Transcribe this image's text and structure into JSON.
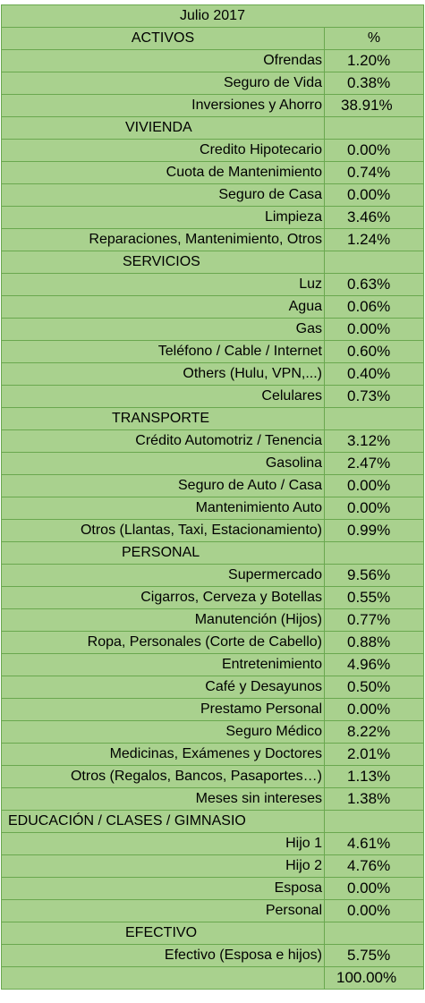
{
  "title": "Julio 2017",
  "header": {
    "label": "ACTIVOS",
    "value": "%"
  },
  "colors": {
    "cell_fill": "#a9d18e",
    "grid": "#6aa84f"
  },
  "rows": [
    {
      "type": "item",
      "label": "Ofrendas",
      "value": "1.20%"
    },
    {
      "type": "item",
      "label": "Seguro de Vida",
      "value": "0.38%"
    },
    {
      "type": "item",
      "label": "Inversiones y Ahorro",
      "value": "38.91%"
    },
    {
      "type": "section",
      "label": "VIVIENDA",
      "indent": 138
    },
    {
      "type": "item",
      "label": "Credito Hipotecario",
      "value": "0.00%"
    },
    {
      "type": "item",
      "label": "Cuota de Mantenimiento",
      "value": "0.74%"
    },
    {
      "type": "item",
      "label": "Seguro de Casa",
      "value": "0.00%"
    },
    {
      "type": "item",
      "label": "Limpieza",
      "value": "3.46%"
    },
    {
      "type": "item",
      "label": "Reparaciones, Mantenimiento, Otros",
      "value": "1.24%"
    },
    {
      "type": "section",
      "label": "SERVICIOS",
      "indent": 135
    },
    {
      "type": "item",
      "label": "Luz",
      "value": "0.63%"
    },
    {
      "type": "item",
      "label": "Agua",
      "value": "0.06%"
    },
    {
      "type": "item",
      "label": "Gas",
      "value": "0.00%"
    },
    {
      "type": "item",
      "label": "Teléfono / Cable / Internet",
      "value": "0.60%"
    },
    {
      "type": "item",
      "label": "Others (Hulu, VPN,...)",
      "value": "0.40%"
    },
    {
      "type": "item",
      "label": "Celulares",
      "value": "0.73%"
    },
    {
      "type": "section",
      "label": "TRANSPORTE",
      "indent": 123
    },
    {
      "type": "item",
      "label": "Crédito Automotriz / Tenencia",
      "value": "3.12%"
    },
    {
      "type": "item",
      "label": "Gasolina",
      "value": "2.47%"
    },
    {
      "type": "item",
      "label": "Seguro de Auto / Casa",
      "value": "0.00%"
    },
    {
      "type": "item",
      "label": "Mantenimiento Auto",
      "value": "0.00%"
    },
    {
      "type": "item",
      "label": "Otros (Llantas, Taxi, Estacionamiento)",
      "value": "0.99%"
    },
    {
      "type": "section",
      "label": "PERSONAL",
      "indent": 134
    },
    {
      "type": "item",
      "label": "Supermercado",
      "value": "9.56%"
    },
    {
      "type": "item",
      "label": "Cigarros, Cerveza y Botellas",
      "value": "0.55%"
    },
    {
      "type": "item",
      "label": "Manutención (Hijos)",
      "value": "0.77%"
    },
    {
      "type": "item",
      "label": "Ropa, Personales (Corte de Cabello)",
      "value": "0.88%"
    },
    {
      "type": "item",
      "label": "Entretenimiento",
      "value": "4.96%"
    },
    {
      "type": "item",
      "label": "Café y Desayunos",
      "value": "0.50%"
    },
    {
      "type": "item",
      "label": "Prestamo Personal",
      "value": "0.00%"
    },
    {
      "type": "item",
      "label": "Seguro Médico",
      "value": "8.22%"
    },
    {
      "type": "item",
      "label": "Medicinas, Exámenes y Doctores",
      "value": "2.01%"
    },
    {
      "type": "item",
      "label": "Otros (Regalos, Bancos, Pasaportes…)",
      "value": "1.13%"
    },
    {
      "type": "item",
      "label": "Meses sin intereses",
      "value": "1.38%"
    },
    {
      "type": "section",
      "label": "EDUCACIÓN / CLASES / GIMNASIO",
      "indent": 7
    },
    {
      "type": "item",
      "label": "Hijo 1",
      "value": "4.61%"
    },
    {
      "type": "item",
      "label": "Hijo 2",
      "value": "4.76%"
    },
    {
      "type": "item",
      "label": "Esposa",
      "value": "0.00%"
    },
    {
      "type": "item",
      "label": "Personal",
      "value": "0.00%"
    },
    {
      "type": "section",
      "label": "EFECTIVO",
      "indent": 138
    },
    {
      "type": "item",
      "label": "Efectivo (Esposa e hijos)",
      "value": "5.75%"
    },
    {
      "type": "total",
      "label": "",
      "value": "100.00%"
    }
  ]
}
